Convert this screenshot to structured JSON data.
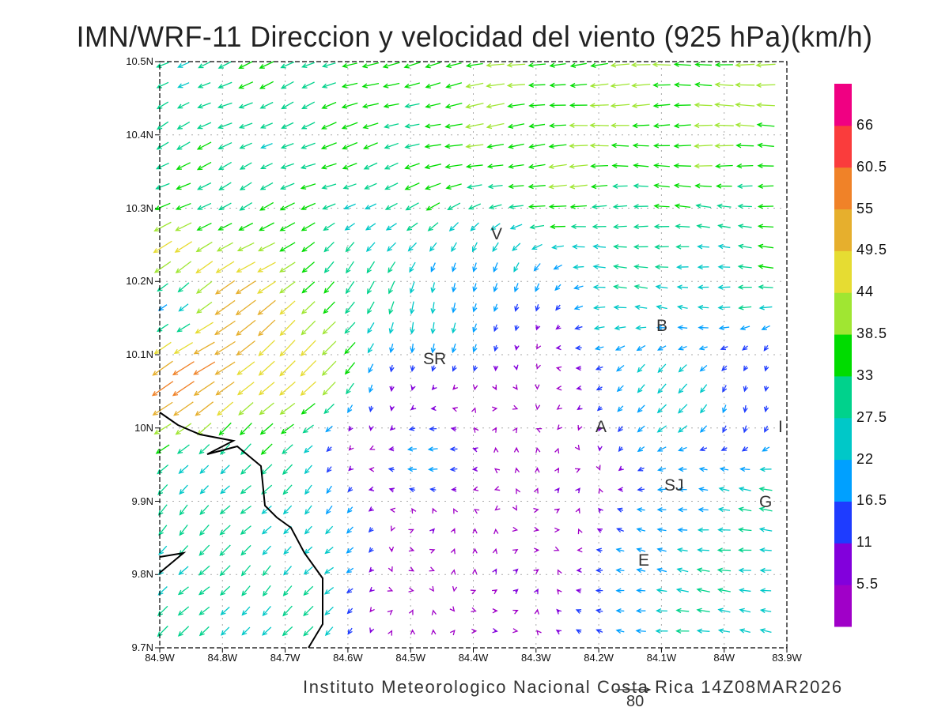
{
  "title": "IMN/WRF-11 Direccion y velocidad del viento (925 hPa)(km/h)",
  "y_axis_labels": [
    "10.5N",
    "10.4N",
    "10.3N",
    "10.2N",
    "10.1N",
    "10N",
    "9.9N",
    "9.8N",
    "9.7N"
  ],
  "x_axis_labels": [
    "84.9W",
    "84.8W",
    "84.7W",
    "84.6W",
    "84.5W",
    "84.4W",
    "84.3W",
    "84.2W",
    "84.1W",
    "84W",
    "83.9W"
  ],
  "colorbar": {
    "labels": [
      "66",
      "60.5",
      "55",
      "49.5",
      "44",
      "38.5",
      "33",
      "27.5",
      "22",
      "16.5",
      "11",
      "5.5"
    ],
    "levels": [
      5.5,
      11,
      16.5,
      22,
      27.5,
      33,
      38.5,
      44,
      49.5,
      55,
      60.5,
      66
    ],
    "colors": [
      "#a000c8",
      "#8200dc",
      "#1e3cff",
      "#00a0ff",
      "#00c8c8",
      "#00d28c",
      "#00dc00",
      "#a0e632",
      "#e6dc32",
      "#e6af2d",
      "#f08228",
      "#fa3c3c",
      "#f00082"
    ]
  },
  "city_labels": [
    "V",
    "SR",
    "B",
    "A",
    "SJ",
    "G",
    "E",
    "I"
  ],
  "reference_vector": {
    "value": "80"
  },
  "footer": "Instituto Meteorologico Nacional Costa Rica  14Z08MAR2026"
}
